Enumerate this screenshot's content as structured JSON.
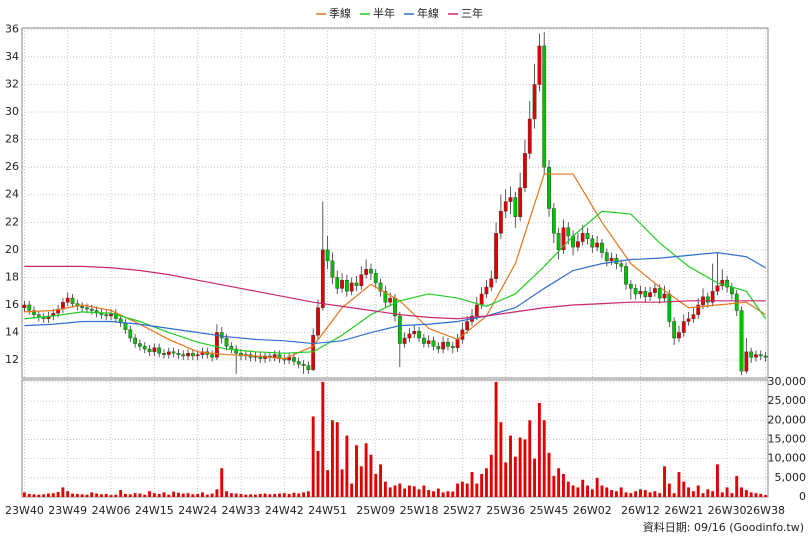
{
  "chart_data": {
    "type": "candlestick",
    "up_color": "#e00000",
    "down_color": "#00c000",
    "grid": true,
    "footnote": "資料日期: 09/16 (Goodinfo.tw)",
    "ylim": [
      10.7,
      36.1
    ],
    "yticks": [
      12,
      14,
      16,
      18,
      20,
      22,
      24,
      26,
      28,
      30,
      32,
      34,
      36
    ],
    "y2lim": [
      0,
      30500
    ],
    "y2ticks": [
      0,
      {
        "value": 5000,
        "label": "5,000"
      },
      {
        "value": 10000,
        "label": "10,000"
      },
      {
        "value": 15000,
        "label": "15,000"
      },
      {
        "value": 20000,
        "label": "20,000"
      },
      {
        "value": 25000,
        "label": "25,000"
      },
      {
        "value": 30000,
        "label": "30,000"
      }
    ],
    "categories": [
      "23W40",
      null,
      null,
      null,
      null,
      null,
      null,
      null,
      null,
      "23W49",
      null,
      null,
      null,
      null,
      null,
      null,
      null,
      null,
      "24W06",
      null,
      null,
      null,
      null,
      null,
      null,
      null,
      null,
      "24W15",
      null,
      null,
      null,
      null,
      null,
      null,
      null,
      null,
      "24W24",
      null,
      null,
      null,
      null,
      null,
      null,
      null,
      null,
      "24W33",
      null,
      null,
      null,
      null,
      null,
      null,
      null,
      null,
      "24W42",
      null,
      null,
      null,
      null,
      null,
      null,
      null,
      null,
      "24W51",
      null,
      null,
      null,
      null,
      null,
      null,
      null,
      null,
      null,
      "25W09",
      null,
      null,
      null,
      null,
      null,
      null,
      null,
      null,
      "25W18",
      null,
      null,
      null,
      null,
      null,
      null,
      null,
      null,
      "25W27",
      null,
      null,
      null,
      null,
      null,
      null,
      null,
      null,
      "25W36",
      null,
      null,
      null,
      null,
      null,
      null,
      null,
      null,
      "25W45",
      null,
      null,
      null,
      null,
      null,
      null,
      null,
      null,
      "26W02",
      null,
      null,
      null,
      null,
      null,
      null,
      null,
      null,
      null,
      "26W12",
      null,
      null,
      null,
      null,
      null,
      null,
      null,
      null,
      "26W21",
      null,
      null,
      null,
      null,
      null,
      null,
      null,
      null,
      "26W30",
      null,
      null,
      null,
      null,
      null,
      null,
      null,
      "26W38"
    ],
    "candles": [
      [
        15.8,
        16.3,
        15.5,
        16.0
      ],
      [
        16.0,
        16.3,
        15.3,
        15.6
      ],
      [
        15.6,
        15.9,
        15.0,
        15.3
      ],
      [
        15.3,
        15.6,
        14.8,
        15.1
      ],
      [
        15.1,
        15.4,
        14.7,
        15.0
      ],
      [
        15.0,
        15.5,
        14.7,
        15.2
      ],
      [
        15.2,
        15.7,
        14.9,
        15.4
      ],
      [
        15.4,
        16.0,
        15.1,
        15.7
      ],
      [
        15.7,
        16.5,
        15.4,
        16.2
      ],
      [
        16.2,
        16.9,
        15.9,
        16.5
      ],
      [
        16.5,
        16.8,
        15.8,
        16.1
      ],
      [
        16.1,
        16.4,
        15.6,
        15.9
      ],
      [
        15.9,
        16.2,
        15.5,
        15.8
      ],
      [
        15.8,
        16.1,
        15.4,
        15.7
      ],
      [
        15.7,
        16.0,
        15.3,
        15.6
      ],
      [
        15.6,
        15.9,
        15.1,
        15.4
      ],
      [
        15.4,
        15.7,
        15.0,
        15.3
      ],
      [
        15.3,
        15.6,
        14.9,
        15.2
      ],
      [
        15.2,
        15.7,
        14.9,
        15.4
      ],
      [
        15.4,
        15.7,
        14.7,
        15.0
      ],
      [
        15.0,
        15.3,
        14.4,
        14.7
      ],
      [
        14.7,
        15.0,
        13.9,
        14.2
      ],
      [
        14.2,
        14.5,
        13.3,
        13.6
      ],
      [
        13.6,
        13.9,
        12.9,
        13.2
      ],
      [
        13.2,
        13.5,
        12.7,
        13.0
      ],
      [
        13.0,
        13.3,
        12.5,
        12.8
      ],
      [
        12.8,
        13.1,
        12.3,
        12.6
      ],
      [
        12.6,
        13.2,
        12.3,
        12.9
      ],
      [
        12.9,
        13.2,
        12.2,
        12.5
      ],
      [
        12.5,
        12.8,
        12.1,
        12.4
      ],
      [
        12.4,
        12.9,
        12.1,
        12.6
      ],
      [
        12.6,
        12.9,
        12.2,
        12.5
      ],
      [
        12.5,
        12.8,
        12.1,
        12.4
      ],
      [
        12.4,
        12.7,
        12.0,
        12.3
      ],
      [
        12.3,
        12.8,
        12.0,
        12.5
      ],
      [
        12.5,
        12.8,
        12.0,
        12.3
      ],
      [
        12.3,
        12.7,
        12.0,
        12.4
      ],
      [
        12.4,
        12.9,
        12.1,
        12.6
      ],
      [
        12.6,
        12.9,
        12.1,
        12.4
      ],
      [
        12.4,
        12.7,
        11.9,
        12.2
      ],
      [
        12.2,
        14.6,
        12.0,
        14.0
      ],
      [
        14.0,
        14.4,
        13.2,
        13.6
      ],
      [
        13.6,
        13.9,
        12.7,
        13.0
      ],
      [
        13.0,
        13.3,
        12.5,
        12.8
      ],
      [
        12.8,
        13.1,
        11.0,
        12.5
      ],
      [
        12.5,
        12.8,
        12.0,
        12.3
      ],
      [
        12.3,
        12.7,
        12.0,
        12.4
      ],
      [
        12.4,
        12.7,
        11.9,
        12.2
      ],
      [
        12.2,
        12.6,
        11.9,
        12.3
      ],
      [
        12.3,
        12.6,
        11.8,
        12.1
      ],
      [
        12.1,
        12.6,
        11.8,
        12.3
      ],
      [
        12.3,
        12.6,
        11.9,
        12.2
      ],
      [
        12.2,
        12.7,
        11.9,
        12.4
      ],
      [
        12.4,
        12.7,
        11.8,
        12.1
      ],
      [
        12.1,
        12.4,
        11.7,
        12.0
      ],
      [
        12.0,
        12.5,
        11.7,
        12.2
      ],
      [
        12.2,
        12.5,
        11.6,
        11.9
      ],
      [
        11.9,
        12.2,
        11.4,
        11.7
      ],
      [
        11.7,
        12.0,
        11.0,
        11.6
      ],
      [
        11.6,
        11.9,
        11.0,
        11.3
      ],
      [
        11.3,
        14.3,
        11.2,
        13.8
      ],
      [
        13.8,
        16.4,
        13.5,
        15.8
      ],
      [
        15.8,
        23.5,
        15.6,
        20.0
      ],
      [
        20.0,
        21.0,
        18.6,
        19.2
      ],
      [
        19.2,
        19.8,
        17.5,
        18.0
      ],
      [
        18.0,
        18.5,
        16.8,
        17.2
      ],
      [
        17.2,
        18.3,
        16.9,
        17.8
      ],
      [
        17.8,
        18.2,
        16.6,
        17.0
      ],
      [
        17.0,
        18.0,
        16.7,
        17.6
      ],
      [
        17.6,
        18.1,
        17.0,
        17.4
      ],
      [
        17.4,
        18.8,
        17.1,
        18.2
      ],
      [
        18.2,
        19.3,
        17.9,
        18.6
      ],
      [
        18.6,
        19.0,
        17.8,
        18.3
      ],
      [
        18.3,
        18.6,
        17.2,
        17.6
      ],
      [
        17.6,
        17.9,
        16.6,
        17.0
      ],
      [
        17.0,
        17.4,
        15.8,
        16.2
      ],
      [
        16.2,
        16.9,
        15.9,
        16.5
      ],
      [
        16.5,
        16.8,
        14.8,
        15.2
      ],
      [
        15.2,
        15.5,
        11.5,
        13.2
      ],
      [
        13.2,
        14.0,
        12.9,
        13.6
      ],
      [
        13.6,
        14.3,
        13.3,
        13.9
      ],
      [
        13.9,
        14.5,
        13.6,
        14.1
      ],
      [
        14.1,
        14.4,
        13.3,
        13.6
      ],
      [
        13.6,
        13.9,
        12.9,
        13.2
      ],
      [
        13.2,
        13.8,
        12.9,
        13.4
      ],
      [
        13.4,
        13.7,
        12.7,
        13.0
      ],
      [
        13.0,
        13.3,
        12.5,
        12.8
      ],
      [
        12.8,
        13.7,
        12.5,
        13.3
      ],
      [
        13.3,
        13.6,
        12.7,
        13.0
      ],
      [
        13.0,
        13.3,
        12.5,
        12.9
      ],
      [
        12.9,
        13.9,
        12.6,
        13.5
      ],
      [
        13.5,
        14.7,
        13.2,
        14.2
      ],
      [
        14.2,
        15.2,
        13.9,
        14.8
      ],
      [
        14.8,
        15.7,
        14.5,
        15.2
      ],
      [
        15.2,
        16.6,
        14.9,
        16.0
      ],
      [
        16.0,
        17.3,
        15.7,
        16.8
      ],
      [
        16.8,
        17.8,
        16.5,
        17.3
      ],
      [
        17.3,
        18.5,
        17.0,
        17.9
      ],
      [
        17.9,
        22.0,
        17.6,
        21.2
      ],
      [
        21.2,
        24.0,
        20.8,
        22.8
      ],
      [
        22.8,
        24.4,
        22.3,
        23.5
      ],
      [
        23.5,
        24.6,
        22.6,
        23.8
      ],
      [
        23.8,
        24.2,
        21.6,
        22.4
      ],
      [
        22.4,
        25.6,
        22.1,
        24.5
      ],
      [
        24.5,
        28.0,
        24.2,
        27.0
      ],
      [
        27.0,
        30.8,
        26.6,
        29.5
      ],
      [
        29.5,
        33.5,
        28.8,
        32.0
      ],
      [
        32.0,
        35.7,
        31.5,
        34.8
      ],
      [
        34.8,
        35.8,
        25.5,
        26.0
      ],
      [
        26.0,
        26.5,
        22.4,
        23.0
      ],
      [
        23.0,
        23.4,
        20.5,
        21.2
      ],
      [
        21.2,
        21.6,
        19.3,
        20.0
      ],
      [
        20.0,
        22.2,
        19.7,
        21.6
      ],
      [
        21.6,
        22.0,
        20.4,
        21.0
      ],
      [
        21.0,
        21.4,
        19.6,
        20.2
      ],
      [
        20.2,
        21.2,
        19.9,
        20.6
      ],
      [
        20.6,
        21.8,
        20.3,
        21.2
      ],
      [
        21.2,
        21.6,
        20.4,
        20.8
      ],
      [
        20.8,
        21.1,
        19.8,
        20.2
      ],
      [
        20.2,
        21.0,
        19.9,
        20.5
      ],
      [
        20.5,
        20.8,
        19.4,
        19.8
      ],
      [
        19.8,
        20.1,
        18.8,
        19.2
      ],
      [
        19.2,
        19.8,
        18.9,
        19.4
      ],
      [
        19.4,
        19.7,
        18.6,
        19.0
      ],
      [
        19.0,
        19.3,
        18.4,
        18.8
      ],
      [
        18.8,
        19.1,
        17.1,
        17.5
      ],
      [
        17.5,
        17.8,
        16.4,
        17.2
      ],
      [
        17.2,
        17.5,
        16.4,
        16.8
      ],
      [
        16.8,
        17.4,
        16.5,
        17.0
      ],
      [
        17.0,
        17.3,
        16.2,
        16.6
      ],
      [
        16.6,
        17.3,
        16.3,
        16.9
      ],
      [
        16.9,
        17.6,
        16.6,
        17.2
      ],
      [
        17.2,
        17.5,
        16.1,
        16.5
      ],
      [
        16.5,
        17.4,
        16.2,
        16.8
      ],
      [
        16.8,
        17.1,
        14.4,
        14.8
      ],
      [
        14.8,
        15.1,
        13.1,
        13.6
      ],
      [
        13.6,
        14.5,
        13.3,
        14.0
      ],
      [
        14.0,
        15.3,
        13.7,
        14.8
      ],
      [
        14.8,
        15.5,
        14.5,
        15.0
      ],
      [
        15.0,
        15.8,
        14.7,
        15.3
      ],
      [
        15.3,
        16.5,
        15.0,
        16.0
      ],
      [
        16.0,
        17.2,
        15.7,
        16.6
      ],
      [
        16.6,
        16.9,
        15.8,
        16.2
      ],
      [
        16.2,
        19.0,
        15.9,
        17.0
      ],
      [
        17.0,
        19.8,
        16.7,
        17.4
      ],
      [
        17.4,
        18.6,
        17.1,
        17.8
      ],
      [
        17.8,
        18.1,
        16.9,
        17.3
      ],
      [
        17.3,
        17.6,
        16.4,
        16.8
      ],
      [
        16.8,
        17.1,
        15.2,
        15.6
      ],
      [
        15.6,
        15.9,
        10.9,
        11.2
      ],
      [
        11.2,
        13.6,
        11.0,
        12.6
      ],
      [
        12.6,
        12.9,
        11.8,
        12.2
      ],
      [
        12.2,
        12.7,
        11.9,
        12.4
      ],
      [
        12.4,
        12.7,
        12.0,
        12.3
      ],
      [
        12.3,
        12.6,
        11.9,
        12.2
      ]
    ],
    "volume": {
      "axis": "y2",
      "color": "#e00000",
      "values": [
        1200,
        800,
        700,
        600,
        700,
        900,
        1000,
        1300,
        2500,
        1500,
        900,
        800,
        700,
        600,
        1200,
        900,
        700,
        800,
        500,
        600,
        1800,
        800,
        700,
        1000,
        900,
        600,
        1500,
        1000,
        800,
        1200,
        600,
        1400,
        1100,
        900,
        1000,
        700,
        800,
        1200,
        600,
        900,
        2000,
        7500,
        1500,
        1000,
        900,
        800,
        600,
        700,
        600,
        800,
        900,
        700,
        800,
        900,
        1000,
        800,
        1100,
        900,
        1200,
        1500,
        21000,
        12000,
        30000,
        7000,
        20000,
        19500,
        7200,
        16000,
        3500,
        13500,
        8000,
        14000,
        11000,
        6000,
        8500,
        4000,
        2500,
        3000,
        3500,
        2200,
        3000,
        2800,
        2000,
        3000,
        1800,
        1500,
        2200,
        1200,
        1500,
        1400,
        3500,
        4000,
        3500,
        6500,
        3500,
        6000,
        7500,
        11000,
        30000,
        19500,
        9000,
        16000,
        10500,
        15500,
        15000,
        20000,
        10000,
        24500,
        20000,
        11500,
        5500,
        7500,
        6000,
        4000,
        3000,
        2500,
        4500,
        3000,
        2000,
        5000,
        3000,
        2500,
        1800,
        1500,
        2500,
        1200,
        1000,
        1500,
        2000,
        1800,
        1200,
        1500,
        1000,
        8000,
        3500,
        1000,
        6500,
        4000,
        2500,
        1500,
        3000,
        1000,
        2000,
        1500,
        8500,
        1200,
        2500,
        1000,
        5500,
        2500,
        1800,
        1200,
        1000,
        800,
        500
      ]
    },
    "series": [
      {
        "name": "季線",
        "color": "#e8741c",
        "x": [
          0,
          6,
          12,
          18,
          24,
          30,
          36,
          42,
          48,
          54,
          60,
          66,
          72,
          78,
          84,
          90,
          96,
          102,
          108,
          114,
          120,
          126,
          132,
          138,
          144,
          150,
          154
        ],
        "values": [
          15.5,
          15.6,
          16.0,
          15.6,
          14.6,
          13.5,
          12.6,
          12.4,
          12.3,
          12.1,
          13.0,
          15.8,
          17.5,
          16.3,
          14.3,
          13.5,
          15.2,
          19.0,
          25.5,
          25.5,
          22.0,
          19.0,
          17.3,
          15.8,
          16.0,
          16.2,
          15.3
        ]
      },
      {
        "name": "半年",
        "color": "#22cc22",
        "x": [
          0,
          6,
          12,
          18,
          24,
          30,
          36,
          42,
          48,
          54,
          60,
          66,
          72,
          78,
          84,
          90,
          96,
          102,
          108,
          114,
          120,
          126,
          132,
          138,
          144,
          150,
          154
        ],
        "values": [
          15.0,
          15.2,
          15.5,
          15.4,
          14.8,
          14.0,
          13.3,
          12.8,
          12.6,
          12.5,
          12.6,
          13.8,
          15.3,
          16.3,
          16.8,
          16.5,
          15.9,
          16.8,
          18.8,
          21.0,
          22.8,
          22.6,
          20.5,
          18.8,
          17.6,
          17.0,
          15.0
        ]
      },
      {
        "name": "年線",
        "color": "#2f6fd0",
        "x": [
          0,
          6,
          12,
          18,
          24,
          30,
          36,
          42,
          48,
          54,
          60,
          66,
          72,
          78,
          84,
          90,
          96,
          102,
          108,
          114,
          120,
          126,
          132,
          138,
          144,
          150,
          154
        ],
        "values": [
          14.5,
          14.6,
          14.8,
          14.8,
          14.6,
          14.3,
          14.0,
          13.7,
          13.5,
          13.4,
          13.2,
          13.4,
          14.0,
          14.5,
          14.6,
          14.8,
          15.2,
          15.8,
          17.2,
          18.5,
          19.0,
          19.3,
          19.4,
          19.6,
          19.8,
          19.5,
          18.7
        ]
      },
      {
        "name": "三年",
        "color": "#c8286e",
        "x": [
          0,
          6,
          12,
          18,
          24,
          30,
          36,
          42,
          48,
          54,
          60,
          66,
          72,
          78,
          84,
          90,
          96,
          102,
          108,
          114,
          120,
          126,
          132,
          138,
          144,
          150,
          154
        ],
        "values": [
          18.8,
          18.8,
          18.8,
          18.7,
          18.5,
          18.2,
          17.8,
          17.4,
          17.0,
          16.6,
          16.2,
          15.9,
          15.6,
          15.3,
          15.1,
          15.0,
          15.2,
          15.5,
          15.8,
          16.0,
          16.1,
          16.2,
          16.2,
          16.3,
          16.3,
          16.3,
          16.3
        ]
      }
    ]
  }
}
